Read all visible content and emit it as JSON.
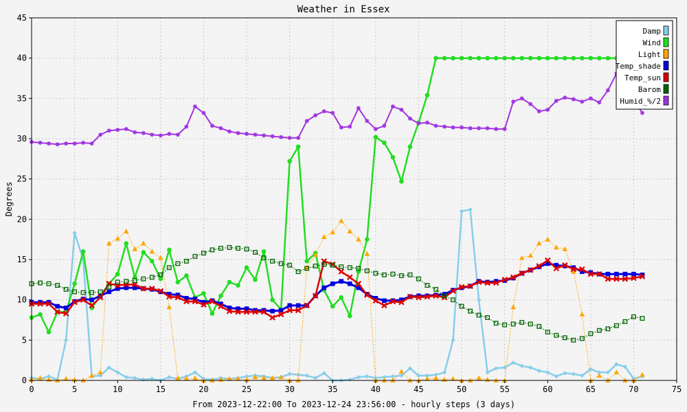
{
  "chart_data": {
    "type": "line",
    "title": "Weather in Essex",
    "xlabel": "From 2023-12-22:00 To 2023-12-24 23:56:00 - hourly steps (3 days)",
    "ylabel": "Degrees",
    "xlim": [
      0,
      75
    ],
    "ylim": [
      0,
      45
    ],
    "xticks": [
      0,
      5,
      10,
      15,
      20,
      25,
      30,
      35,
      40,
      45,
      50,
      55,
      60,
      65,
      70,
      75
    ],
    "yticks": [
      0,
      5,
      10,
      15,
      20,
      25,
      30,
      35,
      40,
      45
    ],
    "grid": true,
    "legend_position": "top-right",
    "series": [
      {
        "name": "Damp",
        "color": "#87ceeb",
        "marker": "diamond",
        "dotted": false,
        "x": [
          0,
          1,
          2,
          3,
          4,
          5,
          6,
          7,
          8,
          9,
          10,
          11,
          12,
          13,
          14,
          15,
          16,
          17,
          18,
          19,
          20,
          21,
          22,
          23,
          24,
          25,
          26,
          27,
          28,
          29,
          30,
          31,
          32,
          33,
          34,
          35,
          36,
          37,
          38,
          39,
          40,
          41,
          42,
          43,
          44,
          45,
          46,
          47,
          48,
          49,
          50,
          51,
          52,
          53,
          54,
          55,
          56,
          57,
          58,
          59,
          60,
          61,
          62,
          63,
          64,
          65,
          66,
          67,
          68,
          69,
          70,
          71
        ],
        "y": [
          0.3,
          0.2,
          0.5,
          0.1,
          5.0,
          18.3,
          15.0,
          0.5,
          0.6,
          1.6,
          1.0,
          0.4,
          0.3,
          0.1,
          0.2,
          0.0,
          0.4,
          0.2,
          0.5,
          1.0,
          0.2,
          0.1,
          0.3,
          0.2,
          0.3,
          0.5,
          0.6,
          0.5,
          0.3,
          0.4,
          0.8,
          0.7,
          0.6,
          0.3,
          0.9,
          0.0,
          0.0,
          0.1,
          0.4,
          0.5,
          0.3,
          0.4,
          0.5,
          0.6,
          1.5,
          0.6,
          0.6,
          0.7,
          1.0,
          5.0,
          21.0,
          21.2,
          10.0,
          1.0,
          1.5,
          1.6,
          2.2,
          1.8,
          1.6,
          1.2,
          1.0,
          0.5,
          0.9,
          0.8,
          0.6,
          1.4,
          1.0,
          1.0,
          2.0,
          1.7,
          0.2,
          0.5
        ]
      },
      {
        "name": "Wind",
        "color": "#22dd22",
        "marker": "circle",
        "dotted": false,
        "x": [
          0,
          1,
          2,
          3,
          4,
          5,
          6,
          7,
          8,
          9,
          10,
          11,
          12,
          13,
          14,
          15,
          16,
          17,
          18,
          19,
          20,
          21,
          22,
          23,
          24,
          25,
          26,
          27,
          28,
          29,
          30,
          31,
          32,
          33,
          34,
          35,
          36,
          37,
          38,
          39,
          40,
          41,
          42,
          43,
          44,
          45,
          46,
          47,
          48,
          49,
          50,
          51,
          52,
          53,
          54,
          55,
          56,
          57,
          58,
          59,
          60,
          61,
          62,
          63,
          64,
          65,
          66,
          67,
          68,
          69,
          70,
          71
        ],
        "y": [
          7.8,
          8.2,
          6.0,
          8.5,
          8.5,
          12.0,
          16.0,
          9.0,
          10.5,
          12.0,
          13.2,
          17.0,
          12.8,
          15.9,
          14.8,
          12.6,
          16.2,
          12.2,
          13.0,
          10.3,
          10.8,
          8.3,
          10.5,
          12.2,
          11.8,
          14.0,
          12.5,
          16.0,
          10.0,
          8.8,
          27.2,
          29.0,
          14.8,
          15.8,
          11.2,
          9.2,
          10.3,
          8.0,
          13.5,
          17.5,
          30.2,
          29.5,
          27.7,
          24.7,
          29.0,
          32.0,
          35.4,
          40.0,
          40.0,
          40.0,
          40.0,
          40.0,
          40.0,
          40.0,
          40.0,
          40.0,
          40.0,
          40.0,
          40.0,
          40.0,
          40.0,
          40.0,
          40.0,
          40.0,
          40.0,
          40.0,
          40.0,
          40.0,
          40.0,
          40.0,
          40.0,
          40.0
        ]
      },
      {
        "name": "Light",
        "color": "#ffa500",
        "marker": "triangle",
        "dotted": true,
        "x": [
          0,
          1,
          2,
          3,
          4,
          5,
          6,
          7,
          8,
          9,
          10,
          11,
          12,
          13,
          14,
          15,
          16,
          17,
          18,
          19,
          20,
          21,
          22,
          23,
          24,
          25,
          26,
          27,
          28,
          29,
          30,
          31,
          32,
          33,
          34,
          35,
          36,
          37,
          38,
          39,
          40,
          41,
          42,
          43,
          44,
          45,
          46,
          47,
          48,
          49,
          50,
          51,
          52,
          53,
          54,
          55,
          56,
          57,
          58,
          59,
          60,
          61,
          62,
          63,
          64,
          65,
          66,
          67,
          68,
          69,
          70,
          71
        ],
        "y": [
          0.1,
          0.3,
          0.1,
          0.0,
          0.2,
          0.1,
          0.0,
          0.6,
          1.0,
          17.0,
          17.6,
          18.5,
          16.3,
          17.0,
          16.0,
          15.2,
          9.1,
          0.3,
          0.2,
          0.3,
          0.0,
          0.0,
          0.1,
          0.2,
          0.2,
          0.1,
          0.4,
          0.3,
          0.3,
          0.4,
          0.0,
          0.0,
          14.0,
          15.6,
          17.8,
          18.4,
          19.8,
          18.5,
          17.5,
          15.7,
          0.0,
          0.0,
          0.0,
          1.1,
          0.0,
          0.0,
          0.2,
          0.3,
          0.1,
          0.2,
          0.0,
          0.0,
          0.3,
          0.1,
          0.0,
          0.0,
          9.1,
          15.2,
          15.5,
          17.0,
          17.5,
          16.5,
          16.3,
          13.5,
          8.2,
          0.0,
          0.6,
          0.0,
          1.0,
          0.0,
          0.0,
          0.7
        ]
      },
      {
        "name": "Temp_shade",
        "color": "#0000dd",
        "marker": "square",
        "dotted": false,
        "x": [
          0,
          1,
          2,
          3,
          4,
          5,
          6,
          7,
          8,
          9,
          10,
          11,
          12,
          13,
          14,
          15,
          16,
          17,
          18,
          19,
          20,
          21,
          22,
          23,
          24,
          25,
          26,
          27,
          28,
          29,
          30,
          31,
          32,
          33,
          34,
          35,
          36,
          37,
          38,
          39,
          40,
          41,
          42,
          43,
          44,
          45,
          46,
          47,
          48,
          49,
          50,
          51,
          52,
          53,
          54,
          55,
          56,
          57,
          58,
          59,
          60,
          61,
          62,
          63,
          64,
          65,
          66,
          67,
          68,
          69,
          70,
          71
        ],
        "y": [
          9.7,
          9.7,
          9.7,
          9.2,
          9.0,
          9.8,
          10.1,
          10.0,
          10.5,
          11.0,
          11.4,
          11.5,
          11.5,
          11.4,
          11.3,
          11.0,
          10.7,
          10.6,
          10.2,
          10.1,
          9.7,
          9.9,
          9.5,
          9.0,
          8.9,
          8.9,
          8.7,
          8.7,
          8.6,
          8.7,
          9.3,
          9.3,
          9.3,
          10.5,
          11.5,
          12.0,
          12.3,
          12.0,
          11.5,
          10.7,
          10.2,
          9.9,
          9.9,
          10.0,
          10.4,
          10.5,
          10.5,
          10.6,
          10.7,
          11.2,
          11.5,
          11.7,
          12.3,
          12.2,
          12.3,
          12.4,
          12.7,
          13.3,
          13.7,
          14.1,
          14.5,
          14.3,
          14.2,
          14.0,
          13.5,
          13.4,
          13.2,
          13.2,
          13.2,
          13.2,
          13.2,
          13.1
        ]
      },
      {
        "name": "Temp_sun",
        "color": "#dd0000",
        "marker": "cross",
        "dotted": false,
        "x": [
          0,
          1,
          2,
          3,
          4,
          5,
          6,
          7,
          8,
          9,
          10,
          11,
          12,
          13,
          14,
          15,
          16,
          17,
          18,
          19,
          20,
          21,
          22,
          23,
          24,
          25,
          26,
          27,
          28,
          29,
          30,
          31,
          32,
          33,
          34,
          35,
          36,
          37,
          38,
          39,
          40,
          41,
          42,
          43,
          44,
          45,
          46,
          47,
          48,
          49,
          50,
          51,
          52,
          53,
          54,
          55,
          56,
          57,
          58,
          59,
          60,
          61,
          62,
          63,
          64,
          65,
          66,
          67,
          68,
          69,
          70,
          71
        ],
        "y": [
          9.5,
          9.5,
          9.5,
          8.5,
          8.3,
          9.7,
          10.0,
          9.3,
          10.3,
          12.0,
          11.8,
          11.9,
          11.9,
          11.4,
          11.4,
          11.1,
          10.4,
          10.3,
          9.8,
          9.8,
          9.4,
          9.8,
          9.2,
          8.6,
          8.5,
          8.5,
          8.5,
          8.5,
          7.8,
          8.2,
          8.7,
          8.7,
          9.3,
          10.5,
          14.8,
          14.4,
          13.5,
          12.8,
          12.0,
          10.6,
          9.9,
          9.3,
          9.8,
          9.7,
          10.4,
          10.3,
          10.4,
          10.5,
          10.3,
          11.1,
          11.6,
          11.7,
          12.2,
          12.1,
          12.1,
          12.5,
          12.8,
          13.3,
          13.7,
          14.2,
          14.9,
          13.9,
          14.3,
          13.8,
          13.8,
          13.2,
          13.2,
          12.6,
          12.6,
          12.6,
          12.7,
          12.9
        ]
      },
      {
        "name": "Barom",
        "color": "#006400",
        "marker": "square-open",
        "dotted": true,
        "x": [
          0,
          1,
          2,
          3,
          4,
          5,
          6,
          7,
          8,
          9,
          10,
          11,
          12,
          13,
          14,
          15,
          16,
          17,
          18,
          19,
          20,
          21,
          22,
          23,
          24,
          25,
          26,
          27,
          28,
          29,
          30,
          31,
          32,
          33,
          34,
          35,
          36,
          37,
          38,
          39,
          40,
          41,
          42,
          43,
          44,
          45,
          46,
          47,
          48,
          49,
          50,
          51,
          52,
          53,
          54,
          55,
          56,
          57,
          58,
          59,
          60,
          61,
          62,
          63,
          64,
          65,
          66,
          67,
          68,
          69,
          70,
          71
        ],
        "y": [
          12.0,
          12.1,
          12.0,
          11.8,
          11.3,
          11.0,
          10.9,
          10.9,
          11.0,
          11.6,
          12.2,
          12.3,
          12.4,
          12.6,
          12.8,
          13.1,
          14.0,
          14.5,
          14.8,
          15.4,
          15.8,
          16.2,
          16.4,
          16.5,
          16.4,
          16.3,
          15.9,
          15.2,
          14.8,
          14.5,
          14.3,
          13.5,
          13.9,
          14.2,
          14.4,
          14.3,
          14.1,
          14.0,
          13.9,
          13.6,
          13.3,
          13.1,
          13.2,
          13.0,
          13.1,
          12.6,
          11.8,
          11.3,
          10.5,
          10.0,
          9.2,
          8.6,
          8.1,
          7.8,
          7.1,
          6.9,
          7.0,
          7.2,
          7.0,
          6.7,
          6.0,
          5.6,
          5.3,
          5.0,
          5.2,
          5.8,
          6.2,
          6.4,
          6.8,
          7.3,
          7.9,
          7.7
        ]
      },
      {
        "name": "Humid_%/2",
        "color": "#a032e0",
        "marker": "star",
        "dotted": false,
        "x": [
          0,
          1,
          2,
          3,
          4,
          5,
          6,
          7,
          8,
          9,
          10,
          11,
          12,
          13,
          14,
          15,
          16,
          17,
          18,
          19,
          20,
          21,
          22,
          23,
          24,
          25,
          26,
          27,
          28,
          29,
          30,
          31,
          32,
          33,
          34,
          35,
          36,
          37,
          38,
          39,
          40,
          41,
          42,
          43,
          44,
          45,
          46,
          47,
          48,
          49,
          50,
          51,
          52,
          53,
          54,
          55,
          56,
          57,
          58,
          59,
          60,
          61,
          62,
          63,
          64,
          65,
          66,
          67,
          68,
          69,
          70,
          71
        ],
        "y": [
          29.6,
          29.5,
          29.4,
          29.3,
          29.4,
          29.4,
          29.5,
          29.4,
          30.5,
          31.0,
          31.1,
          31.2,
          30.8,
          30.7,
          30.5,
          30.4,
          30.6,
          30.5,
          31.5,
          34.0,
          33.2,
          31.6,
          31.3,
          30.9,
          30.7,
          30.6,
          30.5,
          30.4,
          30.3,
          30.2,
          30.1,
          30.1,
          32.2,
          32.9,
          33.4,
          33.2,
          31.4,
          31.5,
          33.8,
          32.2,
          31.2,
          31.6,
          34.0,
          33.6,
          32.5,
          31.9,
          32.0,
          31.6,
          31.5,
          31.4,
          31.4,
          31.3,
          31.3,
          31.3,
          31.2,
          31.2,
          34.6,
          35.0,
          34.3,
          33.4,
          33.6,
          34.7,
          35.1,
          34.9,
          34.6,
          35.0,
          34.5,
          36.0,
          38.1,
          36.5,
          34.8,
          33.2
        ]
      }
    ]
  }
}
